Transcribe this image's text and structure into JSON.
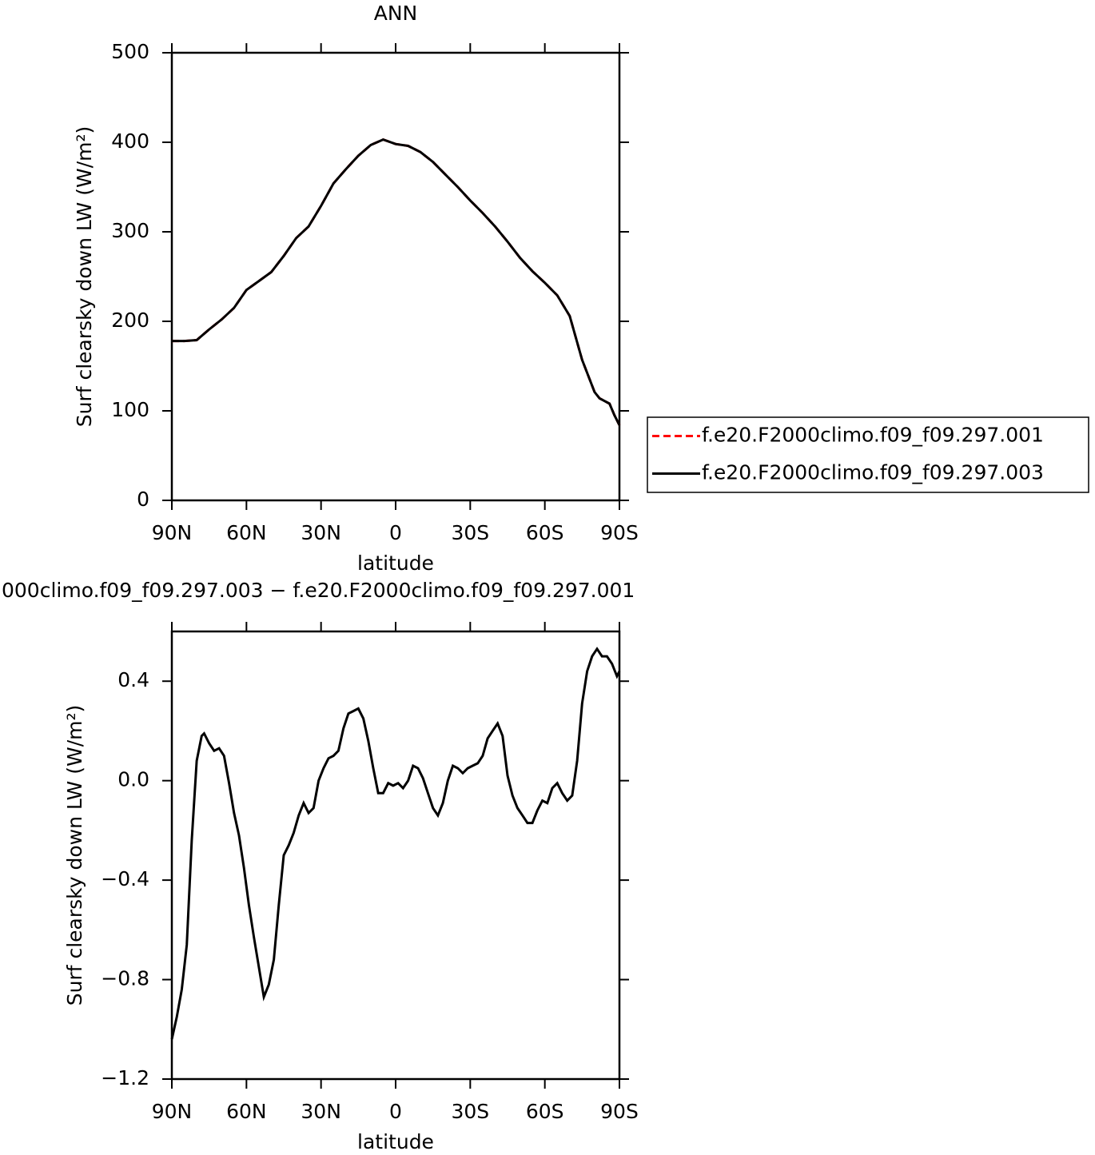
{
  "chart_data": [
    {
      "type": "line",
      "title": "ANN",
      "ylabel": "Surf clearsky down LW (W/m²)",
      "xlabel": "latitude",
      "x": [
        90,
        85,
        80,
        75,
        70,
        65,
        60,
        55,
        50,
        45,
        40,
        35,
        30,
        25,
        20,
        15,
        10,
        5,
        0,
        -5,
        -10,
        -15,
        -20,
        -25,
        -30,
        -35,
        -40,
        -45,
        -50,
        -55,
        -60,
        -65,
        -70,
        -75,
        -80,
        -82,
        -86,
        -88,
        -90
      ],
      "series": [
        {
          "name": "f.e20.F2000climo.f09_f09.297.001",
          "color": "#ff0000",
          "linestyle": "dashed",
          "values": [
            178,
            178,
            179,
            191,
            202,
            215,
            235,
            245,
            255,
            273,
            293,
            306,
            329,
            354,
            370,
            385,
            397,
            403,
            398,
            396,
            389,
            378,
            364,
            350,
            335,
            321,
            306,
            289,
            271,
            256,
            243,
            229,
            206,
            157,
            121,
            114,
            108,
            95,
            84
          ]
        },
        {
          "name": "f.e20.F2000climo.f09_f09.297.003",
          "color": "#000000",
          "linestyle": "solid",
          "values": [
            178,
            178,
            179,
            191,
            202,
            215,
            235,
            245,
            255,
            273,
            293,
            306,
            329,
            354,
            370,
            385,
            397,
            403,
            398,
            396,
            389,
            378,
            364,
            350,
            335,
            321,
            306,
            289,
            271,
            256,
            243,
            229,
            206,
            157,
            121,
            114,
            108,
            95,
            84
          ]
        }
      ],
      "xlim": [
        90,
        -90
      ],
      "xticks": [
        {
          "value": 90,
          "label": "90N"
        },
        {
          "value": 60,
          "label": "60N"
        },
        {
          "value": 30,
          "label": "30N"
        },
        0,
        {
          "value": -30,
          "label": "30S"
        },
        {
          "value": -60,
          "label": "60S"
        },
        {
          "value": -90,
          "label": "90S"
        }
      ],
      "ylim": [
        0,
        500
      ],
      "yticks": [
        0,
        100,
        200,
        300,
        400,
        500
      ],
      "legend": "right"
    },
    {
      "type": "line",
      "title": "000climo.f09_f09.297.003 − f.e20.F2000climo.f09_f09.297.001",
      "ylabel": "Surf clearsky down LW (W/m²)",
      "xlabel": "latitude",
      "x": [
        90,
        88,
        86,
        84,
        82,
        80,
        78,
        77,
        75,
        73,
        71,
        69,
        67,
        65,
        63,
        61,
        59,
        57,
        55,
        53,
        51,
        49,
        47,
        45,
        43,
        41,
        39,
        37,
        36,
        35,
        33,
        31,
        29,
        27,
        25,
        23,
        21,
        19,
        17,
        15,
        13,
        11,
        9,
        7,
        5,
        3,
        1,
        -1,
        -3,
        -5,
        -7,
        -9,
        -11,
        -13,
        -15,
        -17,
        -19,
        -21,
        -23,
        -25,
        -27,
        -29,
        -31,
        -33,
        -35,
        -37,
        -39,
        -41,
        -43,
        -45,
        -47,
        -49,
        -51,
        -53,
        -55,
        -57,
        -59,
        -61,
        -63,
        -65,
        -67,
        -69,
        -71,
        -73,
        -75,
        -77,
        -79,
        -81,
        -83,
        -85,
        -87,
        -89,
        -90
      ],
      "values": [
        -1.04,
        -0.95,
        -0.84,
        -0.66,
        -0.24,
        0.08,
        0.18,
        0.19,
        0.15,
        0.12,
        0.13,
        0.1,
        -0.01,
        -0.13,
        -0.22,
        -0.35,
        -0.5,
        -0.63,
        -0.75,
        -0.87,
        -0.82,
        -0.72,
        -0.5,
        -0.3,
        -0.26,
        -0.21,
        -0.14,
        -0.09,
        -0.11,
        -0.13,
        -0.11,
        0.0,
        0.05,
        0.09,
        0.1,
        0.12,
        0.21,
        0.27,
        0.28,
        0.29,
        0.25,
        0.16,
        0.05,
        -0.05,
        -0.05,
        -0.01,
        -0.02,
        -0.01,
        -0.03,
        0.0,
        0.06,
        0.05,
        0.01,
        -0.05,
        -0.11,
        -0.14,
        -0.09,
        0.0,
        0.06,
        0.05,
        0.03,
        0.05,
        0.06,
        0.07,
        0.1,
        0.17,
        0.2,
        0.23,
        0.18,
        0.02,
        -0.06,
        -0.11,
        -0.14,
        -0.17,
        -0.17,
        -0.12,
        -0.08,
        -0.09,
        -0.03,
        -0.01,
        -0.05,
        -0.08,
        -0.06,
        0.08,
        0.31,
        0.44,
        0.5,
        0.53,
        0.5,
        0.5,
        0.47,
        0.42,
        0.44
      ],
      "color": "#000000",
      "xlim": [
        90,
        -90
      ],
      "xticks": [
        {
          "value": 90,
          "label": "90N"
        },
        {
          "value": 60,
          "label": "60N"
        },
        {
          "value": 30,
          "label": "30N"
        },
        0,
        {
          "value": -30,
          "label": "30S"
        },
        {
          "value": -60,
          "label": "60S"
        },
        {
          "value": -90,
          "label": "90S"
        }
      ],
      "ylim": [
        -1.2,
        0.6
      ],
      "yticks": [
        {
          "value": -1.2,
          "label": "−1.2"
        },
        {
          "value": -0.8,
          "label": "−0.8"
        },
        {
          "value": -0.4,
          "label": "−0.4"
        },
        {
          "value": 0,
          "label": "0.0"
        },
        {
          "value": 0.4,
          "label": "0.4"
        }
      ]
    }
  ]
}
